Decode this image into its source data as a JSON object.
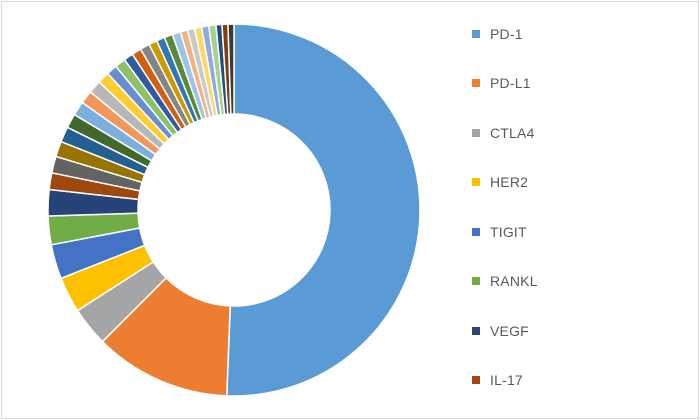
{
  "chart_data": {
    "type": "pie",
    "donut": true,
    "title": "",
    "legend_position": "right",
    "slices": [
      {
        "label": "PD-1",
        "value": 49.0,
        "color": "#5b9bd5"
      },
      {
        "label": "PD-L1",
        "value": 11.5,
        "color": "#ed7d31"
      },
      {
        "label": "CTLA4",
        "value": 3.3,
        "color": "#a5a5a5"
      },
      {
        "label": "HER2",
        "value": 3.0,
        "color": "#ffc000"
      },
      {
        "label": "TIGIT",
        "value": 2.9,
        "color": "#4472c4"
      },
      {
        "label": "RANKL",
        "value": 2.4,
        "color": "#70ad47"
      },
      {
        "label": "VEGF",
        "value": 2.2,
        "color": "#264478"
      },
      {
        "label": "IL-17",
        "value": 1.4,
        "color": "#9e480e"
      },
      {
        "value": 1.4,
        "color": "#636363"
      },
      {
        "value": 1.3,
        "color": "#997300"
      },
      {
        "value": 1.3,
        "color": "#255e91"
      },
      {
        "value": 1.2,
        "color": "#43682b"
      },
      {
        "value": 1.2,
        "color": "#7cafdd"
      },
      {
        "value": 1.1,
        "color": "#f1975a"
      },
      {
        "value": 1.1,
        "color": "#b7b7b7"
      },
      {
        "value": 1.0,
        "color": "#ffcd33"
      },
      {
        "value": 0.9,
        "color": "#698ed0"
      },
      {
        "value": 0.9,
        "color": "#8cc168"
      },
      {
        "value": 0.8,
        "color": "#335aa1"
      },
      {
        "value": 0.8,
        "color": "#d26012"
      },
      {
        "value": 0.8,
        "color": "#848484"
      },
      {
        "value": 0.7,
        "color": "#cc9a00"
      },
      {
        "value": 0.7,
        "color": "#3276b3"
      },
      {
        "value": 0.7,
        "color": "#5a8a39"
      },
      {
        "value": 0.7,
        "color": "#9dc3e6"
      },
      {
        "value": 0.6,
        "color": "#f4b183"
      },
      {
        "value": 0.6,
        "color": "#c9c9c9"
      },
      {
        "value": 0.6,
        "color": "#ffd966"
      },
      {
        "value": 0.6,
        "color": "#8faadc"
      },
      {
        "value": 0.6,
        "color": "#a9d18e"
      },
      {
        "value": 0.5,
        "color": "#1f4e79"
      },
      {
        "value": 0.5,
        "color": "#843c0c"
      },
      {
        "value": 0.5,
        "color": "#3a3a3a"
      }
    ]
  }
}
